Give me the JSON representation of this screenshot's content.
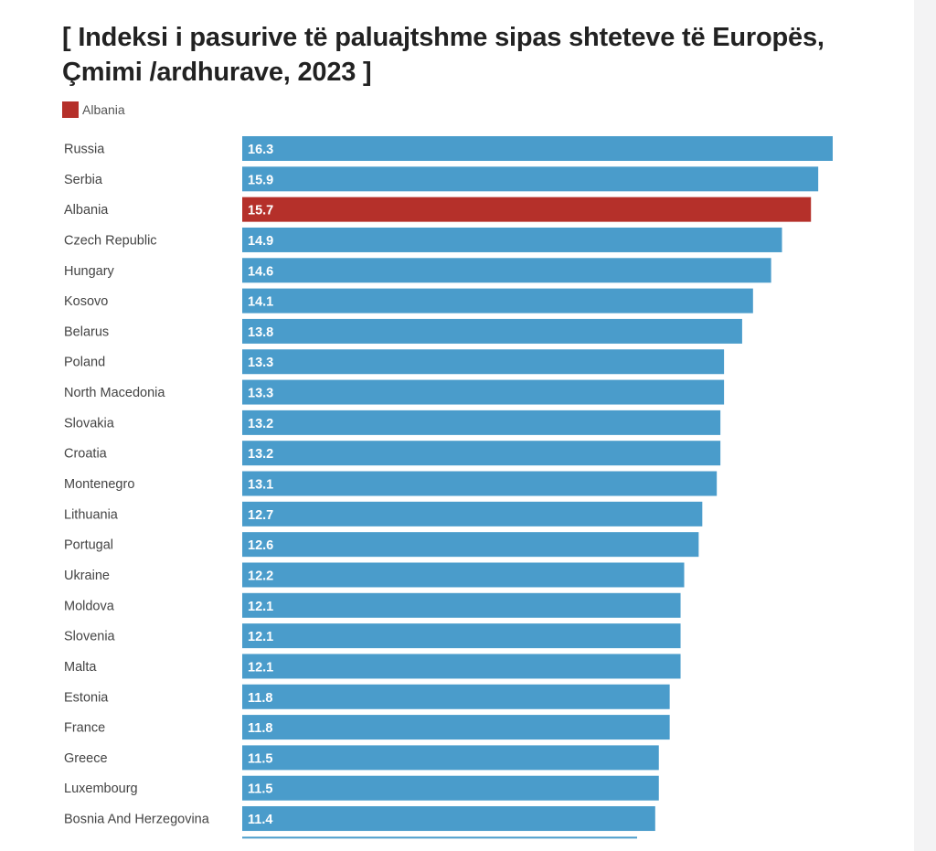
{
  "chart_data": {
    "type": "bar",
    "orientation": "horizontal",
    "title": "[ Indeksi i pasurive të paluajtshme sipas shteteve të Europës, Çmimi /ardhurave, 2023 ]",
    "title_lines": [
      "[ Indeksi i pasurive të paluajtshme sipas shteteve të Europës,",
      "Çmimi /ardhurave, 2023 ]"
    ],
    "legend": [
      {
        "label": "Albania",
        "color": "#b5302a"
      }
    ],
    "legend_position": "top-left",
    "xlabel": "",
    "ylabel": "",
    "xlim": [
      0,
      16.3
    ],
    "grid": false,
    "default_color": "#4a9ccb",
    "highlight_color": "#b5302a",
    "highlight": "Albania",
    "categories": [
      "Russia",
      "Serbia",
      "Albania",
      "Czech Republic",
      "Hungary",
      "Kosovo",
      "Belarus",
      "Poland",
      "North Macedonia",
      "Slovakia",
      "Croatia",
      "Montenegro",
      "Lithuania",
      "Portugal",
      "Ukraine",
      "Moldova",
      "Slovenia",
      "Malta",
      "Estonia",
      "France",
      "Greece",
      "Luxembourg",
      "Bosnia And Herzegovina"
    ],
    "values": [
      16.3,
      15.9,
      15.7,
      14.9,
      14.6,
      14.1,
      13.8,
      13.3,
      13.3,
      13.2,
      13.2,
      13.1,
      12.7,
      12.6,
      12.2,
      12.1,
      12.1,
      12.1,
      11.8,
      11.8,
      11.5,
      11.5,
      11.4
    ]
  }
}
